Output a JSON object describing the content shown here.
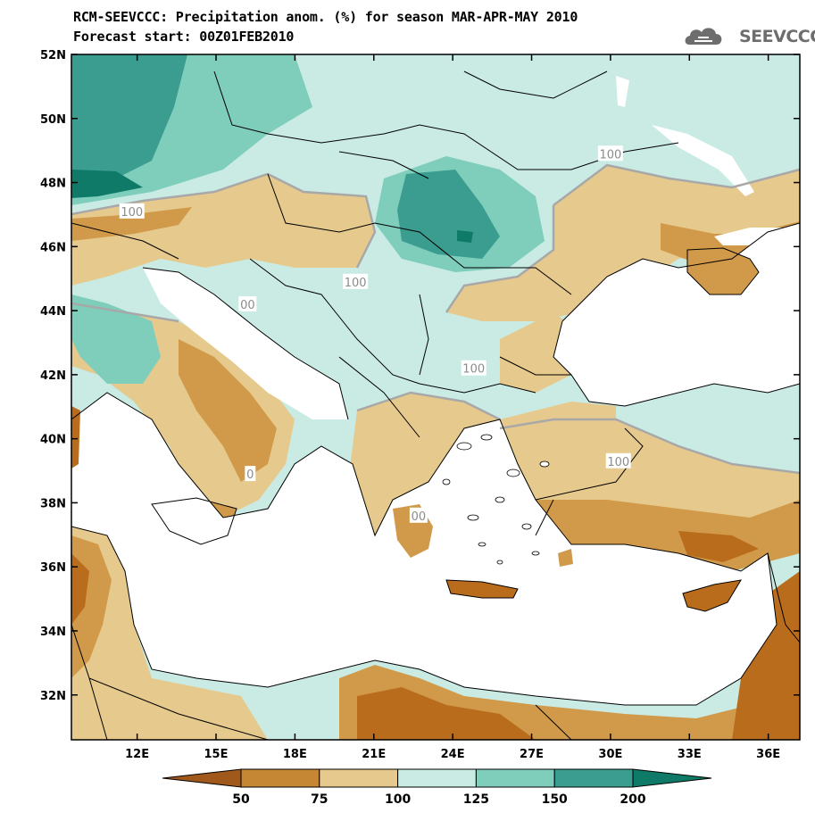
{
  "header": {
    "title": "RCM-SEEVCCC: Precipitation anom. (%) for season MAR-APR-MAY 2010",
    "forecast": "Forecast start: 00Z01FEB2010",
    "logo_text": "SEEVCCC",
    "logo_icon": "cloud-logo-icon"
  },
  "map": {
    "projection": "lat-lon",
    "lon_range": [
      9.5,
      37.2
    ],
    "lat_range": [
      30.6,
      52.0
    ],
    "lat_ticks": [
      {
        "value": 52,
        "label": "52N"
      },
      {
        "value": 50,
        "label": "50N"
      },
      {
        "value": 48,
        "label": "48N"
      },
      {
        "value": 46,
        "label": "46N"
      },
      {
        "value": 44,
        "label": "44N"
      },
      {
        "value": 42,
        "label": "42N"
      },
      {
        "value": 40,
        "label": "40N"
      },
      {
        "value": 38,
        "label": "38N"
      },
      {
        "value": 36,
        "label": "36N"
      },
      {
        "value": 34,
        "label": "34N"
      },
      {
        "value": 32,
        "label": "32N"
      }
    ],
    "lon_ticks": [
      {
        "value": 12,
        "label": "12E"
      },
      {
        "value": 15,
        "label": "15E"
      },
      {
        "value": 18,
        "label": "18E"
      },
      {
        "value": 21,
        "label": "21E"
      },
      {
        "value": 24,
        "label": "24E"
      },
      {
        "value": 27,
        "label": "27E"
      },
      {
        "value": 30,
        "label": "30E"
      },
      {
        "value": 33,
        "label": "33E"
      },
      {
        "value": 36,
        "label": "36E"
      }
    ],
    "contour_labels": [
      {
        "text": "100",
        "lon": 11.8,
        "lat": 47.1
      },
      {
        "text": "100",
        "lon": 20.3,
        "lat": 44.9
      },
      {
        "text": "00",
        "lon": 16.2,
        "lat": 44.2
      },
      {
        "text": "100",
        "lon": 30.0,
        "lat": 48.9
      },
      {
        "text": "100",
        "lon": 24.8,
        "lat": 42.2
      },
      {
        "text": "100",
        "lon": 30.3,
        "lat": 39.3
      },
      {
        "text": "0",
        "lon": 16.3,
        "lat": 38.9
      },
      {
        "text": "00",
        "lon": 22.7,
        "lat": 37.6
      }
    ],
    "colors": {
      "below_50": "#b96d1c",
      "50_75": "#d09a4a",
      "75_100": "#e6c98c",
      "100_125": "#c9ebe4",
      "125_150": "#7fcdbb",
      "150_200": "#3a9d8f",
      "above_200": "#0f7a68",
      "sea": "#ffffff"
    }
  },
  "colorbar": {
    "levels": [
      "50",
      "75",
      "100",
      "125",
      "150",
      "200"
    ],
    "colors": [
      "#a0591a",
      "#c68734",
      "#e6c98c",
      "#c9ebe4",
      "#7fcdbb",
      "#3a9d8f",
      "#0f7a68"
    ]
  }
}
